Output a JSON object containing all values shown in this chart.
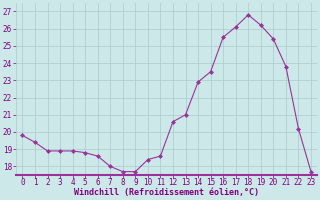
{
  "x": [
    0,
    1,
    2,
    3,
    4,
    5,
    6,
    7,
    8,
    9,
    10,
    11,
    12,
    13,
    14,
    15,
    16,
    17,
    18,
    19,
    20,
    21,
    22,
    23
  ],
  "y": [
    19.8,
    19.4,
    18.9,
    18.9,
    18.9,
    18.8,
    18.6,
    18.0,
    17.7,
    17.7,
    18.4,
    18.6,
    20.6,
    21.0,
    22.9,
    23.5,
    25.5,
    26.1,
    26.8,
    26.2,
    25.4,
    23.8,
    20.2,
    17.7
  ],
  "line_color": "#993399",
  "marker": "D",
  "marker_size": 2.0,
  "xlabel": "Windchill (Refroidissement éolien,°C)",
  "ylim": [
    17.5,
    27.5
  ],
  "xlim": [
    -0.5,
    23.5
  ],
  "yticks": [
    18,
    19,
    20,
    21,
    22,
    23,
    24,
    25,
    26,
    27
  ],
  "xticks": [
    0,
    1,
    2,
    3,
    4,
    5,
    6,
    7,
    8,
    9,
    10,
    11,
    12,
    13,
    14,
    15,
    16,
    17,
    18,
    19,
    20,
    21,
    22,
    23
  ],
  "bg_color": "#cce8e8",
  "grid_color": "#aacccc",
  "label_color": "#800080",
  "bottom_bar_color": "#993399",
  "tick_fontsize": 5.5,
  "xlabel_fontsize": 6.0
}
